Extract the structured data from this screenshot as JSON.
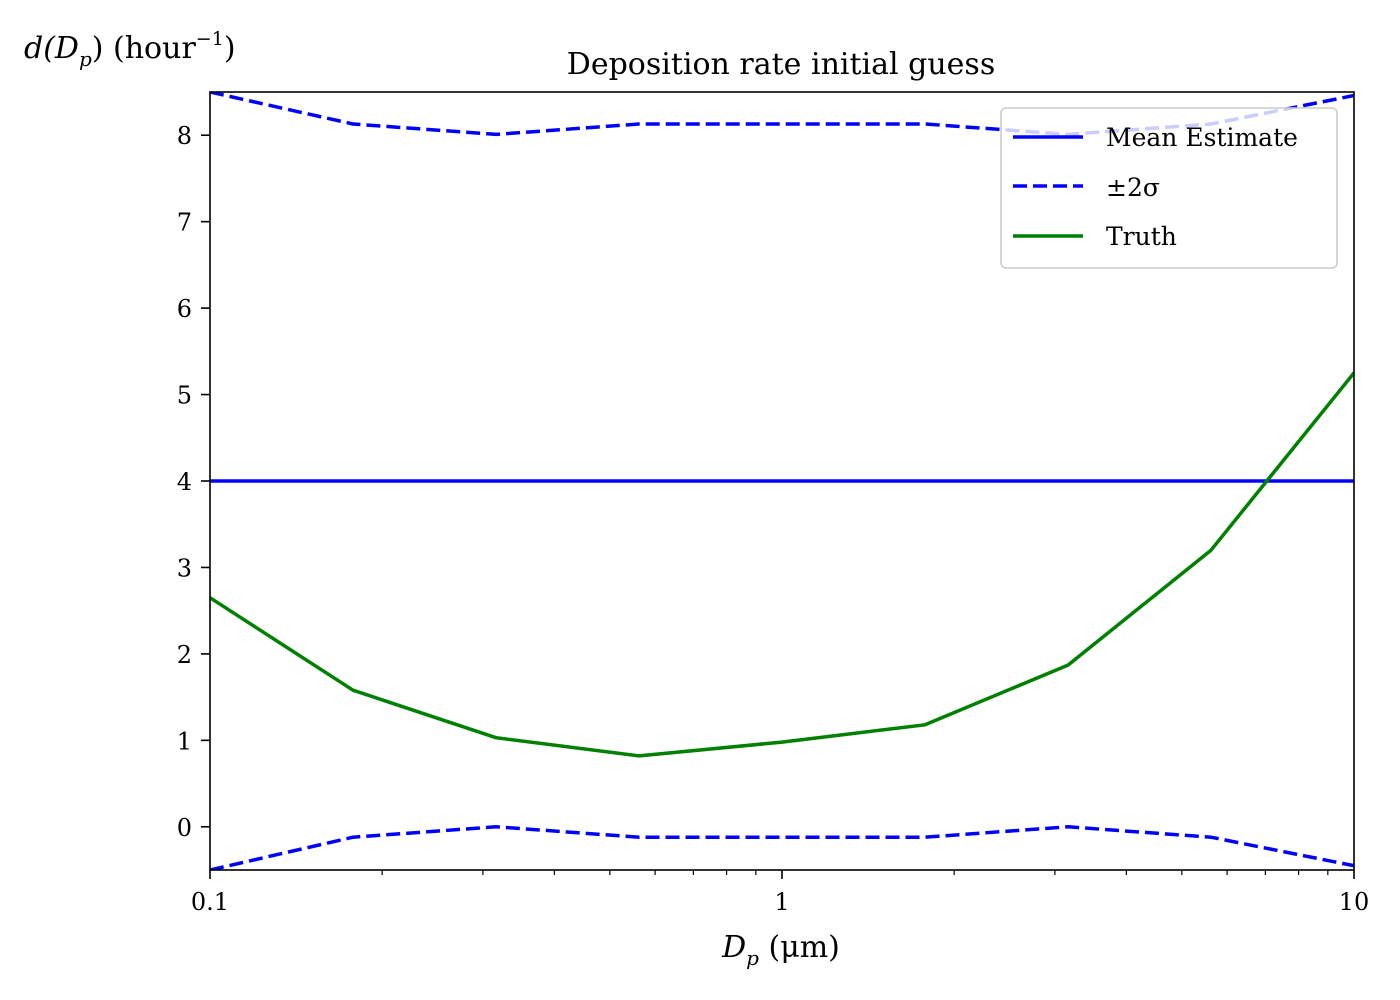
{
  "chart_data": {
    "type": "line",
    "title": "Deposition rate initial guess",
    "xlabel": {
      "base": "D",
      "sub": "p",
      "rest": " (μm)"
    },
    "ylabel": {
      "base": "d(D",
      "sub": "p",
      "close": ")",
      "unit": " (hour",
      "sup": "−1",
      "end": ")"
    },
    "x_scale": "log",
    "xlim": [
      0.1,
      10
    ],
    "ylim": [
      -0.5,
      8.5
    ],
    "x_ticks": [
      {
        "value": 0.1,
        "label": "0.1"
      },
      {
        "value": 1,
        "label": "1"
      },
      {
        "value": 10,
        "label": "10"
      }
    ],
    "y_ticks": [
      {
        "value": 0,
        "label": "0"
      },
      {
        "value": 1,
        "label": "1"
      },
      {
        "value": 2,
        "label": "2"
      },
      {
        "value": 3,
        "label": "3"
      },
      {
        "value": 4,
        "label": "4"
      },
      {
        "value": 5,
        "label": "5"
      },
      {
        "value": 6,
        "label": "6"
      },
      {
        "value": 7,
        "label": "7"
      },
      {
        "value": 8,
        "label": "8"
      }
    ],
    "grid": false,
    "legend_position": "top-right",
    "x": [
      0.1,
      0.1778,
      0.3162,
      0.5623,
      1.0,
      1.7783,
      3.1623,
      5.6234,
      10.0
    ],
    "series": [
      {
        "name": "Mean Estimate",
        "color": "#0000ff",
        "style": "solid",
        "values": [
          4,
          4,
          4,
          4,
          4,
          4,
          4,
          4,
          4
        ]
      },
      {
        "name": "±2σ",
        "color": "#0000ff",
        "style": "dashed",
        "values": [
          8.5,
          8.13,
          8.01,
          8.13,
          8.13,
          8.13,
          8.01,
          8.13,
          8.46
        ]
      },
      {
        "legend": false,
        "color": "#0000ff",
        "style": "dashed",
        "values": [
          -0.5,
          -0.12,
          0.0,
          -0.12,
          -0.12,
          -0.12,
          0.0,
          -0.12,
          -0.45
        ]
      },
      {
        "name": "Truth",
        "color": "#008000",
        "style": "solid",
        "values": [
          2.65,
          1.58,
          1.03,
          0.82,
          0.98,
          1.18,
          1.87,
          3.2,
          5.25
        ]
      }
    ]
  }
}
